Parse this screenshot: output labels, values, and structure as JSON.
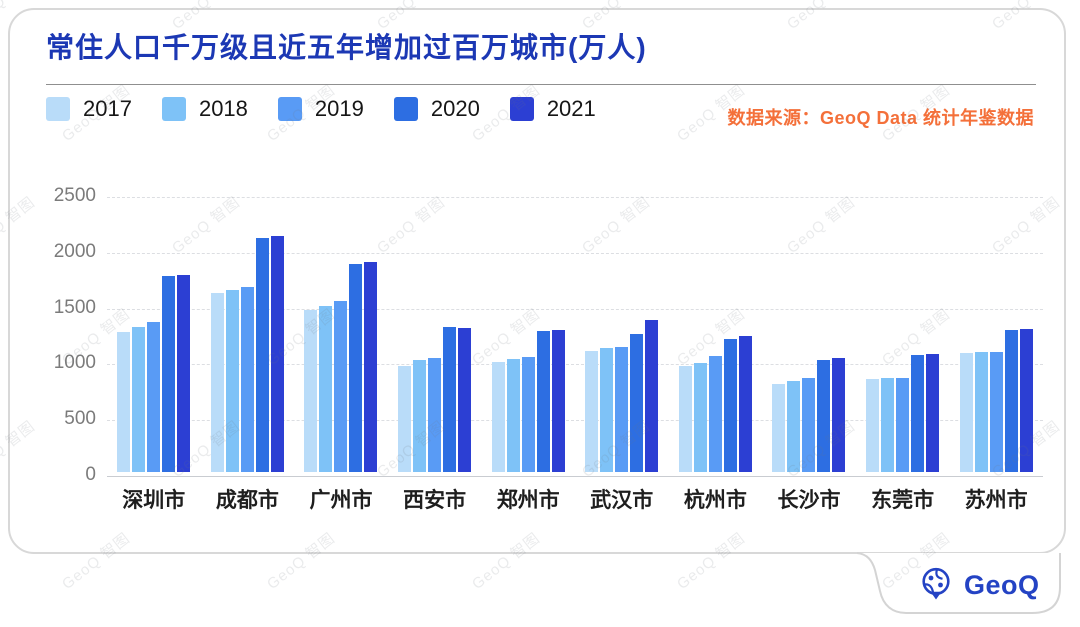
{
  "header": {
    "title": "常住人口千万级且近五年增加过百万城市(万人)",
    "source": "数据来源：GeoQ Data 统计年鉴数据"
  },
  "chart_data": {
    "type": "bar",
    "title": "常住人口千万级且近五年增加过百万城市(万人)",
    "unit": "万人",
    "categories": [
      "深圳市",
      "成都市",
      "广州市",
      "西安市",
      "郑州市",
      "武汉市",
      "杭州市",
      "长沙市",
      "东莞市",
      "苏州市"
    ],
    "series": [
      {
        "name": "2017",
        "color": "#b9dcf9",
        "values": [
          1253,
          1605,
          1450,
          953,
          988,
          1089,
          947,
          792,
          834,
          1068
        ]
      },
      {
        "name": "2018",
        "color": "#7ec2f7",
        "values": [
          1302,
          1633,
          1490,
          1000,
          1014,
          1108,
          981,
          815,
          839,
          1072
        ]
      },
      {
        "name": "2019",
        "color": "#599bf5",
        "values": [
          1344,
          1658,
          1531,
          1020,
          1035,
          1121,
          1036,
          839,
          846,
          1075
        ]
      },
      {
        "name": "2020",
        "color": "#2d6ee2",
        "values": [
          1756,
          2094,
          1868,
          1296,
          1262,
          1233,
          1194,
          1005,
          1047,
          1275
        ]
      },
      {
        "name": "2021",
        "color": "#2c3fd3",
        "values": [
          1768,
          2119,
          1881,
          1287,
          1274,
          1365,
          1220,
          1024,
          1054,
          1285
        ]
      }
    ],
    "ylim": [
      0,
      2500
    ],
    "yticks": [
      0,
      500,
      1000,
      1500,
      2000,
      2500
    ],
    "grid": "horizontal-dashed",
    "legend_position": "top-left"
  },
  "footer": {
    "logo_text": "GeoQ"
  },
  "watermark": {
    "text": "GeoQ 智图"
  },
  "colors": {
    "title": "#1c38b4",
    "source": "#f4703a",
    "logo": "#2443c4",
    "card_border": "#d8d8d8",
    "gridline": "#dcdee2",
    "axis": "#c9ccd1"
  }
}
